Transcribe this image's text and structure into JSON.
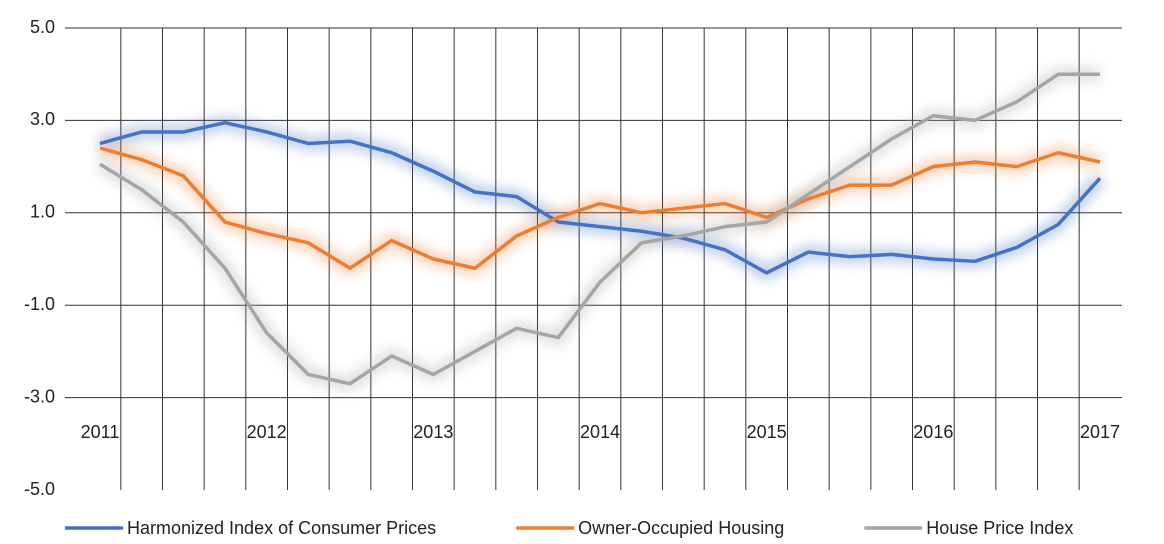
{
  "chart_data": {
    "type": "line",
    "x": [
      2011,
      2011.25,
      2011.5,
      2011.75,
      2012,
      2012.25,
      2012.5,
      2012.75,
      2013,
      2013.25,
      2013.5,
      2013.75,
      2014,
      2014.25,
      2014.5,
      2014.75,
      2015,
      2015.25,
      2015.5,
      2015.75,
      2016,
      2016.25,
      2016.5,
      2016.75,
      2017
    ],
    "xlim": [
      2011,
      2017
    ],
    "xticks": [
      2011,
      2012,
      2013,
      2014,
      2015,
      2016,
      2017
    ],
    "ylim": [
      -5,
      5
    ],
    "yticks": [
      {
        "value": -5,
        "label": "-5.0"
      },
      {
        "value": -3,
        "label": "-3.0"
      },
      {
        "value": -1,
        "label": "-1.0"
      },
      {
        "value": 1,
        "label": "1.0"
      },
      {
        "value": 3,
        "label": "3.0"
      },
      {
        "value": 5,
        "label": "5.0"
      }
    ],
    "grid": true,
    "legend": "bottom",
    "series": [
      {
        "name": "Harmonized Index of Consumer Prices",
        "color": "#4472c4",
        "values": [
          2.5,
          2.75,
          2.75,
          2.95,
          2.75,
          2.5,
          2.55,
          2.3,
          1.9,
          1.45,
          1.35,
          0.8,
          0.7,
          0.6,
          0.45,
          0.2,
          -0.3,
          0.15,
          0.05,
          0.1,
          0.0,
          -0.05,
          0.25,
          0.75,
          1.75
        ]
      },
      {
        "name": "Owner-Occupied Housing",
        "color": "#ed7d31",
        "values": [
          2.4,
          2.15,
          1.8,
          0.8,
          0.55,
          0.35,
          -0.2,
          0.4,
          0.0,
          -0.2,
          0.5,
          0.9,
          1.2,
          1.0,
          1.1,
          1.2,
          0.9,
          1.3,
          1.6,
          1.6,
          2.0,
          2.1,
          2.0,
          2.3,
          2.1
        ]
      },
      {
        "name": "House Price Index",
        "color": "#a5a5a5",
        "values": [
          2.05,
          1.5,
          0.8,
          -0.2,
          -1.6,
          -2.5,
          -2.7,
          -2.1,
          -2.5,
          -2.0,
          -1.5,
          -1.7,
          -0.5,
          0.35,
          0.5,
          0.7,
          0.8,
          1.4,
          2.0,
          2.6,
          3.1,
          3.0,
          3.4,
          4.0,
          4.0
        ]
      }
    ]
  }
}
